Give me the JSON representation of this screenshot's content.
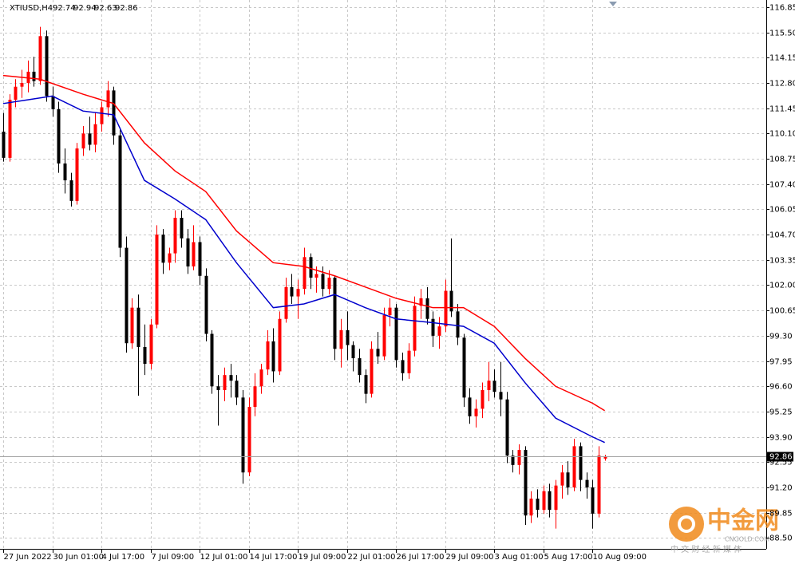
{
  "chart_data": {
    "type": "candlestick",
    "title": "XTIUSD,H4",
    "categories": [
      "27 Jun 2022",
      null,
      null,
      null,
      null,
      null,
      null,
      null,
      "30 Jun 01:00",
      null,
      null,
      null,
      null,
      null,
      null,
      null,
      "4 Jul 17:00",
      null,
      null,
      null,
      null,
      null,
      null,
      null,
      "7 Jul 09:00",
      null,
      null,
      null,
      null,
      null,
      null,
      null,
      "12 Jul 01:00",
      null,
      null,
      null,
      null,
      null,
      null,
      null,
      "14 Jul 17:00",
      null,
      null,
      null,
      null,
      null,
      null,
      null,
      "19 Jul 09:00",
      null,
      null,
      null,
      null,
      null,
      null,
      null,
      "22 Jul 01:00",
      null,
      null,
      null,
      null,
      null,
      null,
      null,
      "26 Jul 17:00",
      null,
      null,
      null,
      null,
      null,
      null,
      null,
      "29 Jul 09:00",
      null,
      null,
      null,
      null,
      null,
      null,
      null,
      "3 Aug 01:00",
      null,
      null,
      null,
      null,
      null,
      null,
      null,
      "5 Aug 17:00",
      null,
      null,
      null,
      null,
      null,
      null,
      null,
      "10 Aug 09:00",
      null,
      null
    ],
    "open": [
      110.2,
      108.8,
      111.9,
      112.6,
      112.8,
      113.4,
      112.9,
      115.3,
      112.1,
      111.4,
      108.5,
      107.6,
      106.5,
      109.3,
      110.1,
      109.5,
      110.6,
      111.5,
      112.4,
      110.0,
      104.0,
      98.9,
      100.8,
      98.7,
      97.8,
      99.9,
      104.7,
      103.2,
      103.7,
      105.6,
      104.5,
      103.0,
      104.3,
      102.5,
      99.4,
      96.6,
      96.4,
      97.2,
      96.9,
      96.0,
      92.0,
      95.5,
      96.6,
      97.5,
      99.0,
      97.4,
      100.2,
      101.9,
      101.4,
      101.8,
      103.5,
      102.4,
      102.6,
      101.8,
      102.4,
      98.6,
      99.6,
      98.8,
      98.1,
      97.2,
      96.2,
      98.6,
      98.2,
      100.4,
      100.8,
      98.0,
      97.3,
      98.5,
      100.9,
      101.3,
      100.2,
      99.3,
      99.8,
      101.7,
      100.6,
      99.2,
      96.0,
      95.0,
      95.4,
      96.4,
      96.9,
      96.3,
      95.9,
      92.9,
      92.4,
      93.2,
      89.7,
      90.6,
      90.0,
      91.0,
      90.0,
      91.3,
      92.0,
      91.2,
      93.4,
      91.6,
      91.2,
      89.8,
      92.74
    ],
    "high": [
      111.2,
      112.2,
      113.0,
      113.5,
      114.0,
      114.2,
      115.8,
      115.6,
      112.6,
      111.8,
      109.3,
      108.0,
      109.6,
      110.5,
      111.0,
      111.2,
      111.8,
      112.9,
      112.6,
      110.3,
      104.6,
      101.3,
      101.5,
      99.9,
      100.2,
      105.2,
      105.0,
      104.0,
      106.0,
      106.0,
      105.0,
      105.2,
      104.6,
      102.9,
      99.6,
      97.2,
      97.6,
      97.8,
      97.2,
      96.4,
      96.0,
      97.3,
      97.8,
      99.6,
      99.7,
      100.6,
      102.4,
      102.6,
      102.3,
      104.0,
      103.7,
      103.0,
      103.0,
      102.8,
      102.5,
      100.2,
      100.6,
      99.0,
      98.6,
      97.5,
      99.0,
      99.5,
      100.8,
      101.3,
      101.0,
      98.4,
      98.9,
      101.4,
      101.8,
      101.9,
      100.6,
      100.3,
      102.3,
      104.5,
      101.0,
      99.4,
      96.5,
      95.9,
      96.8,
      97.9,
      97.5,
      97.9,
      96.3,
      93.2,
      93.5,
      93.4,
      91.0,
      91.1,
      91.3,
      91.4,
      91.6,
      92.4,
      92.6,
      93.8,
      93.6,
      92.0,
      91.6,
      93.4,
      92.94
    ],
    "low": [
      108.6,
      108.6,
      111.5,
      112.0,
      112.3,
      112.6,
      112.7,
      111.8,
      111.0,
      108.0,
      106.9,
      106.2,
      106.3,
      108.9,
      109.2,
      109.1,
      110.2,
      111.0,
      109.5,
      103.5,
      98.4,
      98.6,
      96.1,
      97.2,
      97.5,
      99.7,
      102.6,
      102.8,
      103.2,
      104.0,
      102.6,
      102.8,
      102.0,
      99.0,
      96.2,
      94.5,
      95.8,
      96.0,
      95.6,
      91.4,
      91.8,
      95.0,
      96.2,
      97.2,
      96.8,
      97.2,
      100.0,
      101.0,
      100.2,
      101.5,
      101.8,
      101.6,
      101.4,
      101.5,
      98.0,
      97.6,
      98.0,
      97.4,
      96.8,
      95.7,
      96.0,
      97.8,
      98.0,
      99.8,
      97.6,
      96.9,
      97.0,
      98.2,
      100.2,
      99.9,
      98.7,
      98.6,
      99.5,
      100.3,
      98.8,
      95.5,
      94.6,
      94.4,
      94.9,
      95.8,
      96.0,
      95.0,
      92.5,
      92.0,
      91.9,
      89.2,
      89.3,
      89.6,
      89.8,
      89.6,
      89.0,
      90.6,
      90.8,
      91.0,
      91.0,
      90.6,
      89.0,
      89.6,
      92.63
    ],
    "close": [
      108.8,
      111.9,
      112.6,
      112.8,
      113.4,
      112.9,
      115.3,
      112.1,
      111.4,
      108.5,
      107.6,
      106.5,
      109.3,
      110.1,
      109.5,
      110.6,
      111.5,
      112.4,
      110.0,
      104.0,
      98.9,
      100.8,
      98.7,
      97.8,
      99.9,
      104.7,
      103.2,
      103.7,
      105.6,
      104.5,
      103.0,
      104.3,
      102.5,
      99.4,
      96.6,
      96.4,
      97.2,
      96.9,
      96.0,
      92.0,
      95.5,
      96.6,
      97.5,
      99.0,
      97.4,
      100.2,
      101.9,
      101.4,
      101.8,
      103.5,
      102.4,
      102.6,
      101.8,
      102.4,
      98.6,
      99.6,
      98.8,
      98.1,
      97.2,
      96.2,
      98.6,
      98.2,
      100.4,
      100.8,
      98.0,
      97.3,
      98.5,
      100.9,
      101.3,
      100.2,
      99.3,
      99.8,
      101.7,
      100.6,
      99.2,
      96.0,
      95.0,
      95.4,
      96.4,
      96.9,
      96.3,
      95.9,
      92.9,
      92.4,
      93.2,
      89.7,
      90.6,
      90.0,
      91.0,
      90.0,
      91.3,
      92.0,
      91.2,
      93.4,
      91.6,
      91.2,
      89.8,
      92.9,
      92.86
    ],
    "up_color": "#ff0000",
    "down_color": "#000000",
    "lines": [
      {
        "color": "#ff0000",
        "x": [
          0,
          6,
          13,
          18,
          23,
          28,
          33,
          38,
          44,
          49,
          54,
          59,
          64,
          70,
          75,
          80,
          85,
          90,
          96,
          98
        ],
        "values": [
          113.2,
          113.0,
          112.2,
          111.7,
          109.6,
          108.1,
          107.0,
          104.9,
          103.2,
          103.0,
          102.5,
          101.9,
          101.3,
          100.8,
          100.8,
          99.8,
          98.1,
          96.6,
          95.7,
          95.3
        ]
      },
      {
        "color": "#0000cd",
        "x": [
          0,
          4,
          8,
          13,
          18,
          23,
          28,
          33,
          38,
          44,
          49,
          54,
          59,
          64,
          70,
          75,
          80,
          85,
          90,
          96,
          98
        ],
        "values": [
          111.7,
          111.9,
          112.1,
          111.3,
          111.1,
          107.6,
          106.6,
          105.5,
          103.2,
          100.8,
          101.0,
          101.5,
          100.8,
          100.2,
          100.0,
          99.8,
          98.9,
          96.8,
          94.9,
          93.9,
          93.6
        ]
      }
    ],
    "ylim": [
      87.92,
      117.23
    ],
    "yticks": [
      116.85,
      {
        "value": 115.5,
        "label": "115.50"
      },
      114.15,
      {
        "value": 112.8,
        "label": "112.80"
      },
      111.45,
      {
        "value": 110.1,
        "label": "110.10"
      },
      108.75,
      {
        "value": 107.4,
        "label": "107.40"
      },
      106.05,
      {
        "value": 104.7,
        "label": "104.70"
      },
      103.35,
      {
        "value": 102,
        "label": "102.00"
      },
      100.65,
      {
        "value": 99.3,
        "label": "99.30"
      },
      97.95,
      {
        "value": 96.6,
        "label": "96.60"
      },
      95.25,
      {
        "value": 93.9,
        "label": "93.90"
      },
      92.55,
      {
        "value": 91.2,
        "label": "91.20"
      },
      89.85,
      {
        "value": 88.5,
        "label": "88.50"
      }
    ],
    "grid": true,
    "watermark": {
      "logo": "中金网",
      "domain": "CNGOLD.COM",
      "tagline": "中 文 财 经 新 媒 体"
    }
  }
}
